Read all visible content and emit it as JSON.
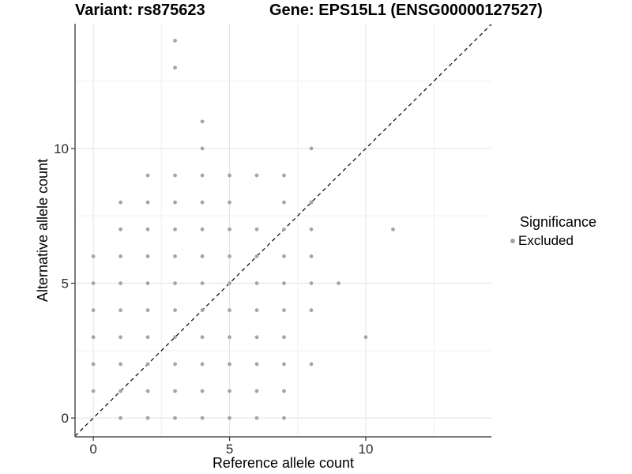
{
  "header": {
    "variant_title": "Variant: rs875623",
    "gene_title": "Gene: EPS15L1 (ENSG00000127527)"
  },
  "legend": {
    "title": "Significance",
    "items": [
      {
        "label": "Excluded",
        "color": "#a5a5a5"
      }
    ]
  },
  "chart_data": {
    "type": "scatter",
    "title": "Variant: rs875623 — Gene: EPS15L1 (ENSG00000127527)",
    "xlabel": "Reference allele count",
    "ylabel": "Alternative allele count",
    "x_axis": {
      "label": "Reference allele count",
      "ticks": [
        0,
        5,
        10
      ],
      "tick_labels": [
        "0",
        "5",
        "10"
      ],
      "minor_gridlines": [
        2.5,
        7.5,
        12.5
      ],
      "range": [
        -0.67,
        14.61
      ]
    },
    "y_axis": {
      "label": "Alternative allele count",
      "ticks": [
        0,
        5,
        10
      ],
      "tick_labels": [
        "0",
        "5",
        "10"
      ],
      "minor_gridlines": [
        2.5,
        7.5,
        12.5
      ],
      "range": [
        -0.7,
        14.63
      ]
    },
    "identity_line": {
      "equation": "y = x",
      "style": "dashed",
      "color": "#151515"
    },
    "legend_position": "right",
    "grid": "major-and-minor",
    "series": [
      {
        "name": "Excluded",
        "color": "#a5a5a5",
        "marker_radius": 2.4,
        "points": [
          [
            1,
            0
          ],
          [
            2,
            0
          ],
          [
            3,
            0
          ],
          [
            4,
            0
          ],
          [
            5,
            0
          ],
          [
            6,
            0
          ],
          [
            7,
            0
          ],
          [
            0,
            1
          ],
          [
            1,
            1
          ],
          [
            2,
            1
          ],
          [
            3,
            1
          ],
          [
            4,
            1
          ],
          [
            5,
            1
          ],
          [
            6,
            1
          ],
          [
            7,
            1
          ],
          [
            0,
            2
          ],
          [
            1,
            2
          ],
          [
            2,
            2
          ],
          [
            3,
            2
          ],
          [
            4,
            2
          ],
          [
            5,
            2
          ],
          [
            6,
            2
          ],
          [
            7,
            2
          ],
          [
            8,
            2
          ],
          [
            0,
            3
          ],
          [
            1,
            3
          ],
          [
            2,
            3
          ],
          [
            3,
            3
          ],
          [
            4,
            3
          ],
          [
            5,
            3
          ],
          [
            6,
            3
          ],
          [
            7,
            3
          ],
          [
            10,
            3
          ],
          [
            0,
            4
          ],
          [
            1,
            4
          ],
          [
            2,
            4
          ],
          [
            3,
            4
          ],
          [
            4,
            4
          ],
          [
            5,
            4
          ],
          [
            6,
            4
          ],
          [
            7,
            4
          ],
          [
            8,
            4
          ],
          [
            0,
            5
          ],
          [
            1,
            5
          ],
          [
            2,
            5
          ],
          [
            3,
            5
          ],
          [
            4,
            5
          ],
          [
            5,
            5
          ],
          [
            6,
            5
          ],
          [
            7,
            5
          ],
          [
            8,
            5
          ],
          [
            9,
            5
          ],
          [
            0,
            6
          ],
          [
            1,
            6
          ],
          [
            2,
            6
          ],
          [
            3,
            6
          ],
          [
            4,
            6
          ],
          [
            5,
            6
          ],
          [
            6,
            6
          ],
          [
            7,
            6
          ],
          [
            8,
            6
          ],
          [
            1,
            7
          ],
          [
            2,
            7
          ],
          [
            3,
            7
          ],
          [
            4,
            7
          ],
          [
            5,
            7
          ],
          [
            6,
            7
          ],
          [
            7,
            7
          ],
          [
            8,
            7
          ],
          [
            11,
            7
          ],
          [
            1,
            8
          ],
          [
            2,
            8
          ],
          [
            3,
            8
          ],
          [
            4,
            8
          ],
          [
            5,
            8
          ],
          [
            7,
            8
          ],
          [
            8,
            8
          ],
          [
            2,
            9
          ],
          [
            3,
            9
          ],
          [
            4,
            9
          ],
          [
            5,
            9
          ],
          [
            6,
            9
          ],
          [
            7,
            9
          ],
          [
            4,
            10
          ],
          [
            8,
            10
          ],
          [
            4,
            11
          ],
          [
            3,
            13
          ],
          [
            3,
            14
          ]
        ]
      }
    ],
    "styles": {
      "grid_major_color": "#e3e3e3",
      "grid_minor_color": "#f0f0f0",
      "axis_line_color": "#515151",
      "tick_mark_color": "#333333",
      "tick_label_color": "#2b2b2b",
      "background": "#ffffff"
    }
  }
}
